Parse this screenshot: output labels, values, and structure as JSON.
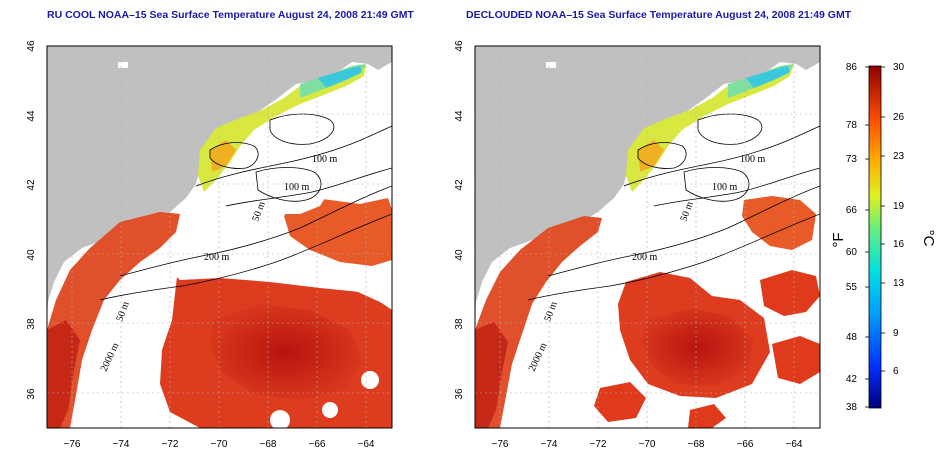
{
  "maps": [
    {
      "title": "RU COOL NOAA–15 Sea Surface Temperature August 24, 2008 21:49 GMT",
      "contour_labels": [
        "100 m",
        "100 m",
        "50 m",
        "200 m",
        "50 m",
        "2000 m"
      ]
    },
    {
      "title": "DECLOUDED NOAA–15 Sea Surface Temperature August 24, 2008 21:49 GMT",
      "contour_labels": [
        "100 m",
        "100 m",
        "50 m",
        "200 m",
        "50 m",
        "2000 m"
      ]
    }
  ],
  "axes": {
    "lon_ticks": [
      "−76",
      "−74",
      "−72",
      "−70",
      "−68",
      "−66",
      "−64"
    ],
    "lat_ticks": [
      "46",
      "44",
      "42",
      "40",
      "38",
      "36"
    ]
  },
  "colorbar": {
    "fahrenheit_ticks": [
      "86",
      "78",
      "73",
      "66",
      "60",
      "55",
      "48",
      "42",
      "38"
    ],
    "celsius_ticks": [
      "30",
      "26",
      "23",
      "19",
      "16",
      "13",
      "9",
      "6"
    ],
    "fahrenheit_unit": "°F",
    "celsius_unit": "°C"
  },
  "colors": {
    "land": "#c0c0c0",
    "cloud": "#ffffff",
    "warm": "#d93a1f",
    "hot": "#c41a12",
    "cool_cyan": "#3cc8dc",
    "cool_yellow": "#e8e030"
  }
}
